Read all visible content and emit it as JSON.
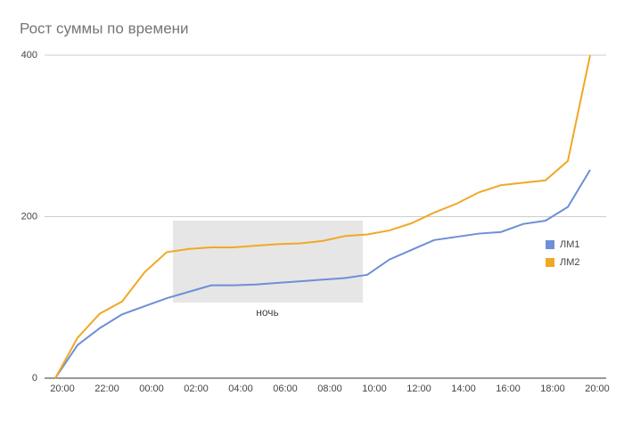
{
  "chart_data": {
    "type": "line",
    "title": "Рост суммы по времени",
    "categories": [
      "20:00",
      null,
      "22:00",
      null,
      "00:00",
      null,
      "02:00",
      null,
      "04:00",
      null,
      "06:00",
      null,
      "08:00",
      null,
      "10:00",
      null,
      "12:00",
      null,
      "14:00",
      null,
      "16:00",
      null,
      "18:00",
      null,
      "20:00"
    ],
    "series": [
      {
        "name": "ЛМ1",
        "color": "#6d8fd6",
        "values": [
          0,
          41,
          62,
          79,
          89,
          99,
          107,
          115,
          115,
          116,
          118,
          120,
          122,
          124,
          128,
          147,
          159,
          171,
          175,
          179,
          181,
          191,
          195,
          212,
          258
        ]
      },
      {
        "name": "ЛМ2",
        "color": "#f0a827",
        "values": [
          0,
          50,
          80,
          95,
          131,
          156,
          160,
          162,
          162,
          164,
          166,
          167,
          170,
          176,
          178,
          183,
          192,
          205,
          216,
          230,
          239,
          242,
          245,
          269,
          400
        ]
      }
    ],
    "ylim": [
      0,
      400
    ],
    "yticks": [
      0,
      200,
      400
    ],
    "grid": true,
    "legend": "right",
    "annotation": "ночь"
  }
}
